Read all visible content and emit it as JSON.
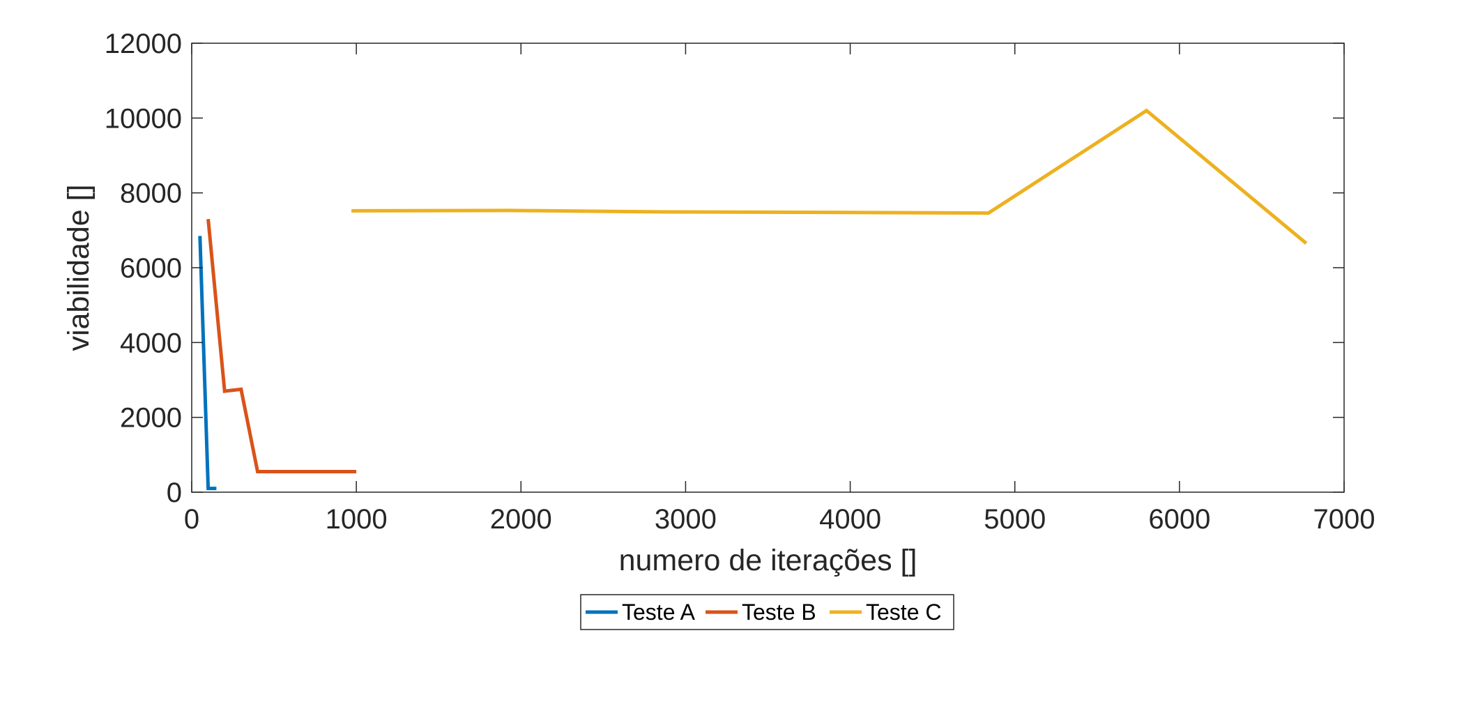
{
  "chart_data": {
    "type": "line",
    "title": "",
    "xlabel": "numero de iterações []",
    "ylabel": "viabilidade []",
    "xlim": [
      0,
      7000
    ],
    "ylim": [
      0,
      12000
    ],
    "xticks": [
      0,
      1000,
      2000,
      3000,
      4000,
      5000,
      6000,
      7000
    ],
    "yticks": [
      0,
      2000,
      4000,
      6000,
      8000,
      10000,
      12000
    ],
    "grid": false,
    "box": true,
    "legend": {
      "position": "bottom-outside",
      "orientation": "horizontal"
    },
    "series": [
      {
        "name": "Teste A",
        "color": "#0072BD",
        "x": [
          50,
          100,
          150
        ],
        "y": [
          6850,
          100,
          100
        ]
      },
      {
        "name": "Teste B",
        "color": "#D95319",
        "x": [
          100,
          200,
          300,
          400,
          500,
          600,
          700,
          800,
          900,
          1000
        ],
        "y": [
          7300,
          2700,
          2750,
          550,
          550,
          550,
          550,
          550,
          550,
          550
        ]
      },
      {
        "name": "Teste C",
        "color": "#EDB120",
        "x": [
          970,
          1930,
          2900,
          3870,
          4840,
          5800,
          6770
        ],
        "y": [
          7520,
          7530,
          7490,
          7480,
          7460,
          10200,
          6650
        ]
      }
    ]
  }
}
